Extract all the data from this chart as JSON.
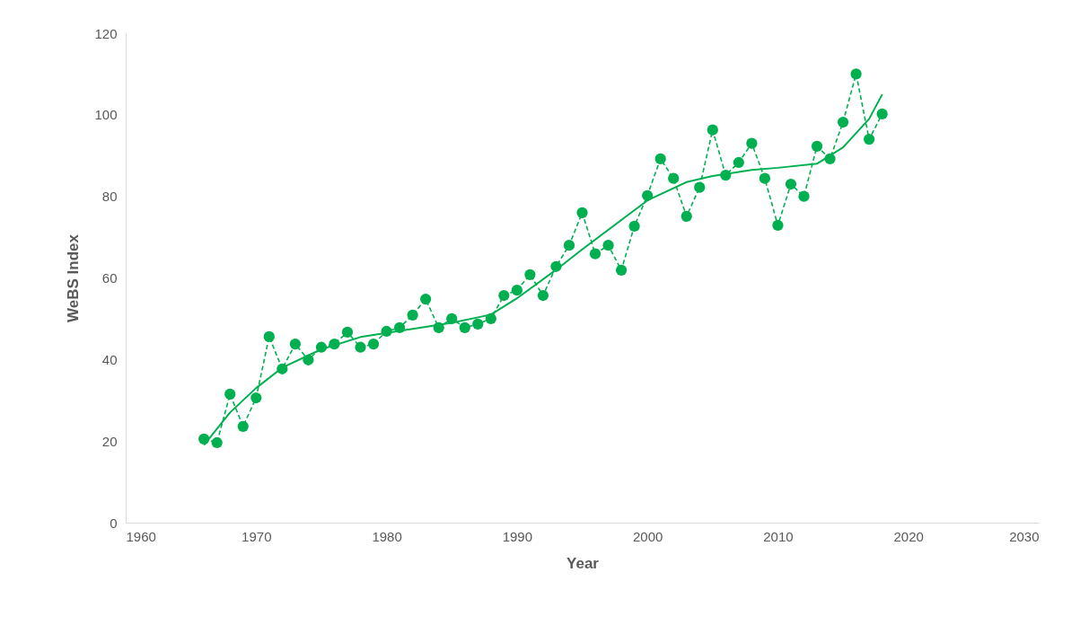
{
  "chart_data": {
    "type": "line",
    "xlabel": "Year",
    "ylabel": "WeBS Index",
    "xlim": [
      1960,
      2030
    ],
    "xticks": [
      1960,
      1970,
      1980,
      1990,
      2000,
      2010,
      2020,
      2030
    ],
    "ylim": [
      0,
      120
    ],
    "yticks": [
      0,
      20,
      40,
      60,
      80,
      100,
      120
    ],
    "grid": false,
    "legend": false,
    "x": [
      1966,
      1967,
      1968,
      1969,
      1970,
      1971,
      1972,
      1973,
      1974,
      1975,
      1976,
      1977,
      1978,
      1979,
      1980,
      1981,
      1982,
      1983,
      1984,
      1985,
      1986,
      1987,
      1988,
      1989,
      1990,
      1991,
      1992,
      1993,
      1994,
      1995,
      1996,
      1997,
      1998,
      1999,
      2000,
      2001,
      2002,
      2003,
      2004,
      2005,
      2006,
      2007,
      2008,
      2009,
      2010,
      2011,
      2012,
      2013,
      2014,
      2015,
      2016,
      2017,
      2018
    ],
    "series": [
      {
        "type": "line",
        "color": "#00b050",
        "marker": "circle",
        "line_style": "dashed",
        "values": [
          20.5,
          19.6,
          31.5,
          23.6,
          30.6,
          45.6,
          37.7,
          43.8,
          39.9,
          43,
          43.8,
          46.7,
          43,
          43.8,
          46.9,
          47.8,
          50.9,
          54.8,
          47.8,
          50,
          47.8,
          48.7,
          50,
          55.7,
          57,
          60.8,
          55.7,
          62.8,
          68,
          76,
          65.9,
          68,
          61.9,
          72.7,
          80.2,
          89.2,
          84.4,
          75.1,
          82.2,
          96.3,
          85.2,
          88.3,
          93,
          84.4,
          72.9,
          83,
          80,
          92.3,
          89.2,
          98.2,
          110,
          94,
          100.2
        ]
      },
      {
        "type": "line",
        "color": "#00b050",
        "marker": "none",
        "line_style": "solid",
        "x": [
          1966,
          1968,
          1970,
          1972,
          1975,
          1978,
          1980,
          1985,
          1988,
          1990,
          1993,
          1995,
          2000,
          2003,
          2005,
          2008,
          2010,
          2013,
          2015,
          2017,
          2018
        ],
        "values": [
          19,
          27,
          33,
          38,
          42.5,
          45.5,
          46.5,
          49,
          51,
          55,
          62,
          67,
          79,
          83.5,
          85,
          86.5,
          87,
          88,
          92,
          99,
          105
        ]
      }
    ]
  }
}
